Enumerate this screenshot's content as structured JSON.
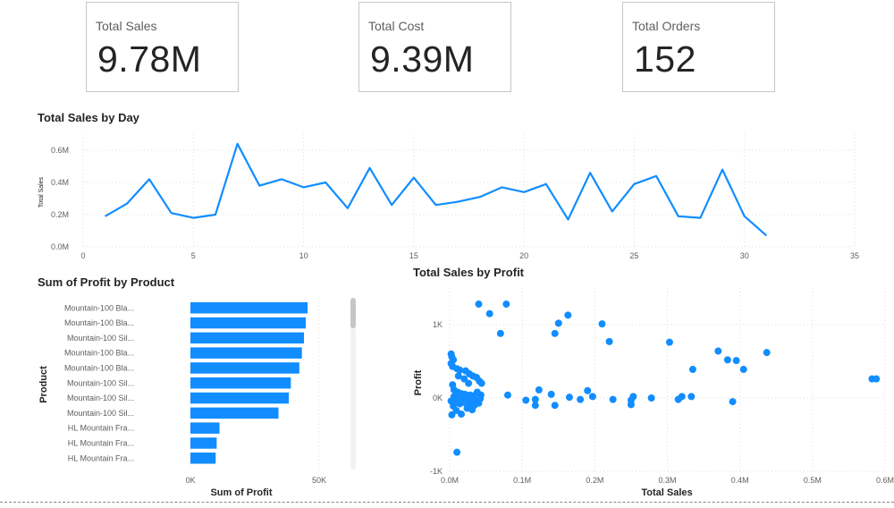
{
  "cards": [
    {
      "label": "Total Sales",
      "value": "9.78M"
    },
    {
      "label": "Total Cost",
      "value": "9.39M"
    },
    {
      "label": "Total Orders",
      "value": "152"
    }
  ],
  "colors": {
    "series": "#118dff",
    "grid": "#e1dfdd",
    "scrollbar": "#c8c6c4"
  },
  "chart_data": [
    {
      "type": "line",
      "title": "Total Sales by Day",
      "xlabel": "",
      "ylabel": "Total Sales",
      "xlim": [
        0,
        35
      ],
      "ylim": [
        0,
        0.7
      ],
      "grid": true,
      "x_ticks": [
        "0",
        "5",
        "10",
        "15",
        "20",
        "25",
        "30",
        "35"
      ],
      "y_ticks": [
        "0.0M",
        "0.2M",
        "0.4M",
        "0.6M"
      ],
      "x": [
        1,
        2,
        3,
        4,
        5,
        6,
        7,
        8,
        9,
        10,
        11,
        12,
        13,
        14,
        15,
        16,
        17,
        18,
        19,
        20,
        21,
        22,
        23,
        24,
        25,
        26,
        27,
        28,
        29,
        30,
        31
      ],
      "values": [
        0.19,
        0.27,
        0.42,
        0.21,
        0.18,
        0.2,
        0.64,
        0.38,
        0.42,
        0.37,
        0.4,
        0.24,
        0.49,
        0.26,
        0.43,
        0.26,
        0.28,
        0.31,
        0.37,
        0.34,
        0.39,
        0.17,
        0.46,
        0.22,
        0.39,
        0.44,
        0.19,
        0.18,
        0.48,
        0.19,
        0.07
      ]
    },
    {
      "type": "bar",
      "orientation": "horizontal",
      "title": "Sum of Profit by Product",
      "xlabel": "Sum of Profit",
      "ylabel": "Product",
      "xlim": [
        0,
        50000
      ],
      "x_ticks": [
        "0K",
        "50K"
      ],
      "categories": [
        "Mountain-100 Bla...",
        "Mountain-100 Bla...",
        "Mountain-100 Sil...",
        "Mountain-100 Bla...",
        "Mountain-100 Bla...",
        "Mountain-100 Sil...",
        "Mountain-100 Sil...",
        "Mountain-100 Sil...",
        "HL Mountain Fra...",
        "HL Mountain Fra...",
        "HL Mountain Fra..."
      ],
      "values": [
        45500,
        44800,
        44100,
        43300,
        42300,
        39000,
        38200,
        34200,
        11300,
        10200,
        9800
      ]
    },
    {
      "type": "scatter",
      "title": "Total Sales by Profit",
      "xlabel": "Total Sales",
      "ylabel": "Profit",
      "xlim": [
        0,
        0.6
      ],
      "ylim": [
        -1000,
        1500
      ],
      "x_ticks": [
        "0.0M",
        "0.1M",
        "0.2M",
        "0.3M",
        "0.4M",
        "0.5M",
        "0.6M"
      ],
      "y_ticks": [
        "-1K",
        "0K",
        "1K"
      ],
      "points": [
        [
          0.04,
          1280
        ],
        [
          0.055,
          1150
        ],
        [
          0.078,
          1280
        ],
        [
          0.07,
          880
        ],
        [
          0.145,
          880
        ],
        [
          0.15,
          1020
        ],
        [
          0.163,
          1130
        ],
        [
          0.21,
          1010
        ],
        [
          0.22,
          770
        ],
        [
          0.303,
          760
        ],
        [
          0.37,
          640
        ],
        [
          0.383,
          520
        ],
        [
          0.395,
          510
        ],
        [
          0.405,
          390
        ],
        [
          0.437,
          620
        ],
        [
          0.335,
          390
        ],
        [
          0.582,
          260
        ],
        [
          0.588,
          260
        ],
        [
          0.002,
          600
        ],
        [
          0.003,
          560
        ],
        [
          0.005,
          520
        ],
        [
          0.002,
          470
        ],
        [
          0.004,
          430
        ],
        [
          0.01,
          400
        ],
        [
          0.014,
          380
        ],
        [
          0.022,
          370
        ],
        [
          0.027,
          330
        ],
        [
          0.032,
          300
        ],
        [
          0.037,
          280
        ],
        [
          0.041,
          230
        ],
        [
          0.044,
          200
        ],
        [
          0.02,
          260
        ],
        [
          0.012,
          300
        ],
        [
          0.026,
          200
        ],
        [
          0.004,
          180
        ],
        [
          0.006,
          110
        ],
        [
          0.011,
          80
        ],
        [
          0.016,
          60
        ],
        [
          0.021,
          50
        ],
        [
          0.028,
          40
        ],
        [
          0.033,
          30
        ],
        [
          0.038,
          80
        ],
        [
          0.043,
          40
        ],
        [
          0.006,
          20
        ],
        [
          0.013,
          10
        ],
        [
          0.018,
          0
        ],
        [
          0.024,
          -10
        ],
        [
          0.03,
          -20
        ],
        [
          0.035,
          -30
        ],
        [
          0.042,
          -10
        ],
        [
          0.002,
          -40
        ],
        [
          0.008,
          -60
        ],
        [
          0.014,
          -80
        ],
        [
          0.02,
          -60
        ],
        [
          0.027,
          -80
        ],
        [
          0.034,
          -100
        ],
        [
          0.04,
          -70
        ],
        [
          0.005,
          -110
        ],
        [
          0.009,
          -170
        ],
        [
          0.003,
          -230
        ],
        [
          0.016,
          -220
        ],
        [
          0.024,
          -140
        ],
        [
          0.031,
          -160
        ],
        [
          0.01,
          -740
        ],
        [
          0.08,
          40
        ],
        [
          0.105,
          -30
        ],
        [
          0.118,
          -20
        ],
        [
          0.118,
          -100
        ],
        [
          0.123,
          110
        ],
        [
          0.14,
          50
        ],
        [
          0.145,
          -100
        ],
        [
          0.165,
          10
        ],
        [
          0.18,
          -20
        ],
        [
          0.19,
          100
        ],
        [
          0.197,
          20
        ],
        [
          0.225,
          -20
        ],
        [
          0.25,
          -30
        ],
        [
          0.253,
          20
        ],
        [
          0.25,
          -90
        ],
        [
          0.278,
          0
        ],
        [
          0.315,
          -20
        ],
        [
          0.32,
          20
        ],
        [
          0.333,
          20
        ],
        [
          0.39,
          -50
        ]
      ]
    }
  ]
}
